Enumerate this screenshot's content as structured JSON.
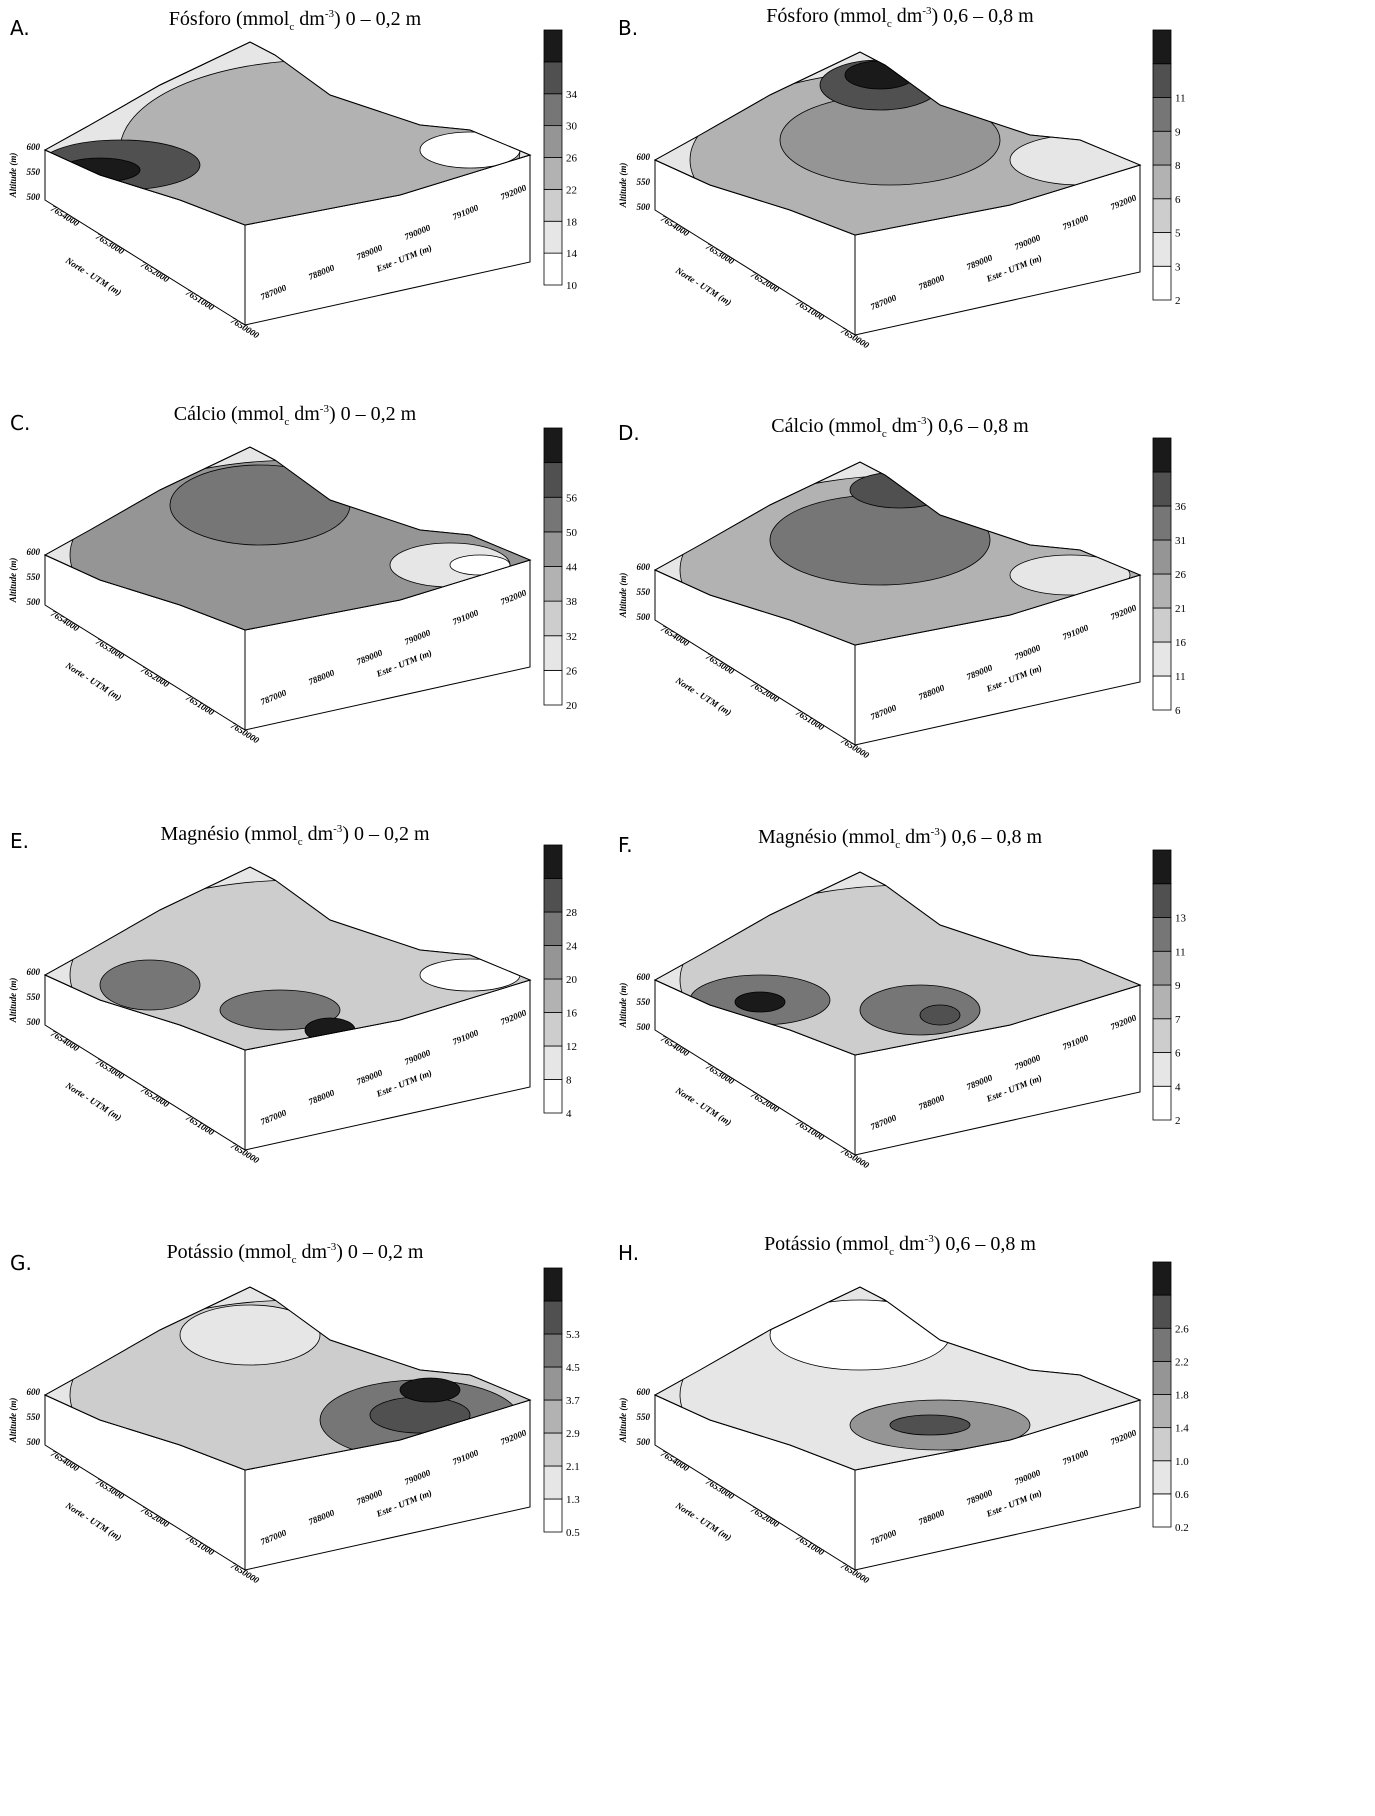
{
  "panels": [
    {
      "letter": "A.",
      "title": [
        "Fósforo (mmol",
        "c",
        " dm",
        "-3",
        ") 0 – 0,2 m"
      ],
      "levels": [
        "10",
        "14",
        "18",
        "22",
        "26",
        "30",
        "34"
      ]
    },
    {
      "letter": "B.",
      "title": [
        "Fósforo (mmol",
        "c",
        " dm",
        "-3",
        ") 0,6 – 0,8 m"
      ],
      "levels": [
        "2",
        "3",
        "5",
        "6",
        "8",
        "9",
        "11"
      ]
    },
    {
      "letter": "C.",
      "title": [
        "Cálcio (mmol",
        "c",
        " dm",
        "-3",
        ") 0 – 0,2 m"
      ],
      "levels": [
        "20",
        "26",
        "32",
        "38",
        "44",
        "50",
        "56"
      ]
    },
    {
      "letter": "D.",
      "title": [
        "Cálcio (mmol",
        "c",
        " dm",
        "-3",
        ") 0,6 – 0,8 m"
      ],
      "levels": [
        "6",
        "11",
        "16",
        "21",
        "26",
        "31",
        "36"
      ]
    },
    {
      "letter": "E.",
      "title": [
        "Magnésio (mmol",
        "c",
        " dm",
        "-3",
        ") 0 – 0,2 m"
      ],
      "levels": [
        "4",
        "8",
        "12",
        "16",
        "20",
        "24",
        "28"
      ]
    },
    {
      "letter": "F.",
      "title": [
        "Magnésio (mmol",
        "c",
        " dm",
        "-3",
        ") 0,6 – 0,8 m"
      ],
      "levels": [
        "2",
        "4",
        "6",
        "7",
        "9",
        "11",
        "13"
      ]
    },
    {
      "letter": "G.",
      "title": [
        "Potássio (mmol",
        "c",
        " dm",
        "-3",
        ") 0 – 0,2 m"
      ],
      "levels": [
        "0.5",
        "1.3",
        "2.1",
        "2.9",
        "3.7",
        "4.5",
        "5.3"
      ]
    },
    {
      "letter": "H.",
      "title": [
        "Potássio (mmol",
        "c",
        " dm",
        "-3",
        ") 0,6 – 0,8 m"
      ],
      "levels": [
        "0.2",
        "0.6",
        "1.0",
        "1.4",
        "1.8",
        "2.2",
        "2.6"
      ]
    }
  ],
  "axes": {
    "altitude_label": "Altitude (m)",
    "altitude_ticks": [
      "600",
      "550",
      "500"
    ],
    "north_label": "Norte - UTM (m)",
    "north_ticks": [
      "7654000",
      "7653000",
      "7652000",
      "7651000",
      "7650000"
    ],
    "east_label": "Este - UTM (m)",
    "east_ticks": [
      "787000",
      "788000",
      "789000",
      "790000",
      "791000",
      "792000"
    ]
  }
}
